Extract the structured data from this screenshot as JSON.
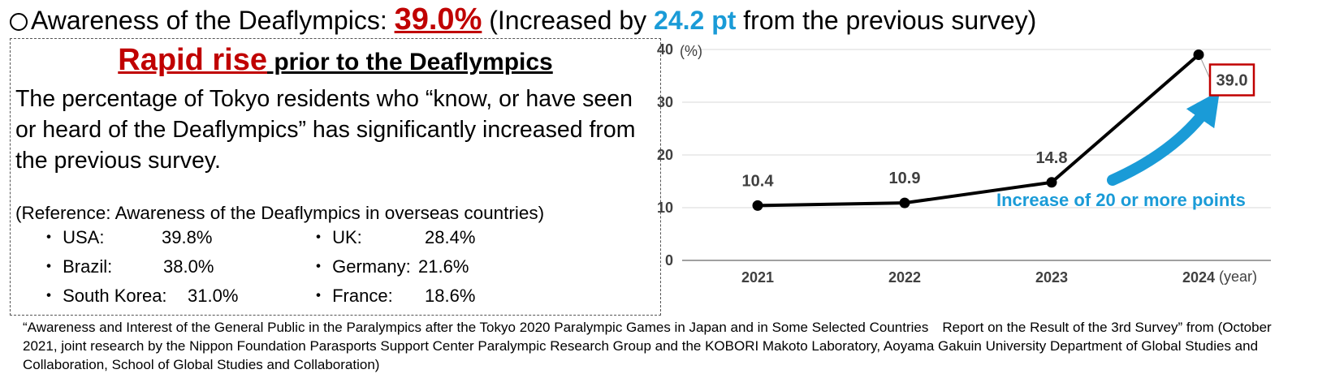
{
  "headline": {
    "prefix": "Awareness of the Deaflympics: ",
    "value": "39.0%",
    "middle": " (Increased by ",
    "increase": "24.2 pt",
    "suffix": " from the previous survey)"
  },
  "box": {
    "title_red": "Rapid rise",
    "title_rest": " prior to the Deaflympics",
    "body": "The percentage of Tokyo residents who “know, or have seen or heard of the Deaflympics” has significantly increased from the previous survey.",
    "reference": "(Reference: Awareness of the Deaflympics in overseas countries)",
    "countries": [
      {
        "name": "・ USA:",
        "value": "39.8%"
      },
      {
        "name": "・ UK:",
        "value": "28.4%"
      },
      {
        "name": "・ Brazil:",
        "value": "38.0%"
      },
      {
        "name": "・ Germany:",
        "value": "21.6%"
      },
      {
        "name": "・ South Korea:",
        "value": "31.0%"
      },
      {
        "name": "・ France:",
        "value": "18.6%"
      }
    ]
  },
  "source": "“Awareness and Interest of the General Public in the Paralympics after the Tokyo 2020 Paralympic Games in Japan and in Some Selected Countries　Report on the Result of the 3rd Survey” from (October 2021, joint research by the Nippon Foundation Parasports Support Center Paralympic Research Group and the KOBORI Makoto Laboratory, Aoyama Gakuin University  Department of Global Studies and Collaboration, School of Global Studies and Collaboration)",
  "chart_data": {
    "type": "line",
    "title": "",
    "xlabel": "(year)",
    "ylabel": "(%)",
    "categories": [
      "2021",
      "2022",
      "2023",
      "2024"
    ],
    "series": [
      {
        "values": [
          10.4,
          10.9,
          14.8,
          39.0
        ]
      }
    ],
    "data_labels": [
      "10.4",
      "10.9",
      "14.8",
      "39.0"
    ],
    "ylim": [
      0,
      40
    ],
    "yticks": [
      0,
      10,
      20,
      30,
      40
    ],
    "grid": true,
    "annotation": "Increase of 20 or more points",
    "colors": {
      "line": "#000000",
      "annotation": "#1a9bd7",
      "highlight_box": "#c00000"
    }
  }
}
